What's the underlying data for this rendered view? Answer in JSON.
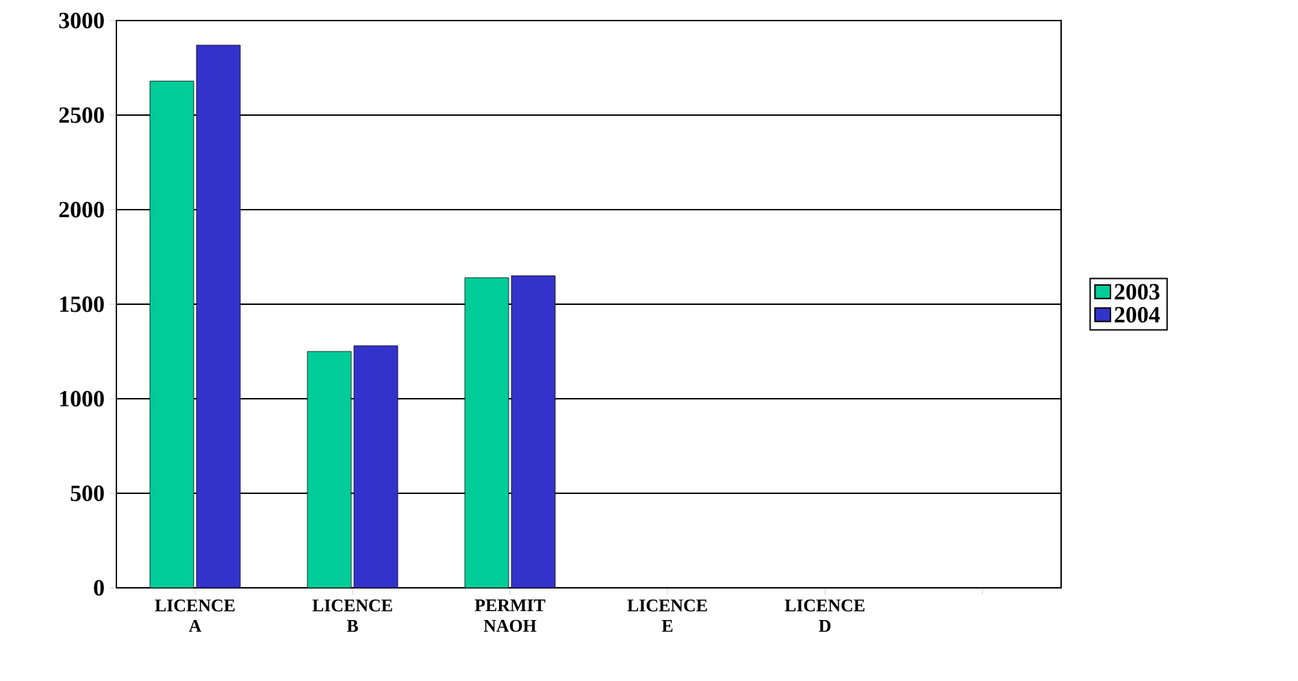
{
  "chart_data": {
    "type": "bar",
    "categories": [
      "LICENCE A",
      "LICENCE B",
      "PERMIT NAOH",
      "LICENCE E",
      "LICENCE D",
      null
    ],
    "series": [
      {
        "name": "2003",
        "color": "#00cc99",
        "values": [
          2680,
          1250,
          1640,
          0,
          0,
          null
        ]
      },
      {
        "name": "2004",
        "color": "#3333cc",
        "values": [
          2870,
          1280,
          1650,
          0,
          0,
          null
        ]
      }
    ],
    "ylim": [
      0,
      3000
    ],
    "yticks": [
      0,
      500,
      1000,
      1500,
      2000,
      2500,
      3000
    ],
    "grid": "y",
    "legend": "right"
  }
}
